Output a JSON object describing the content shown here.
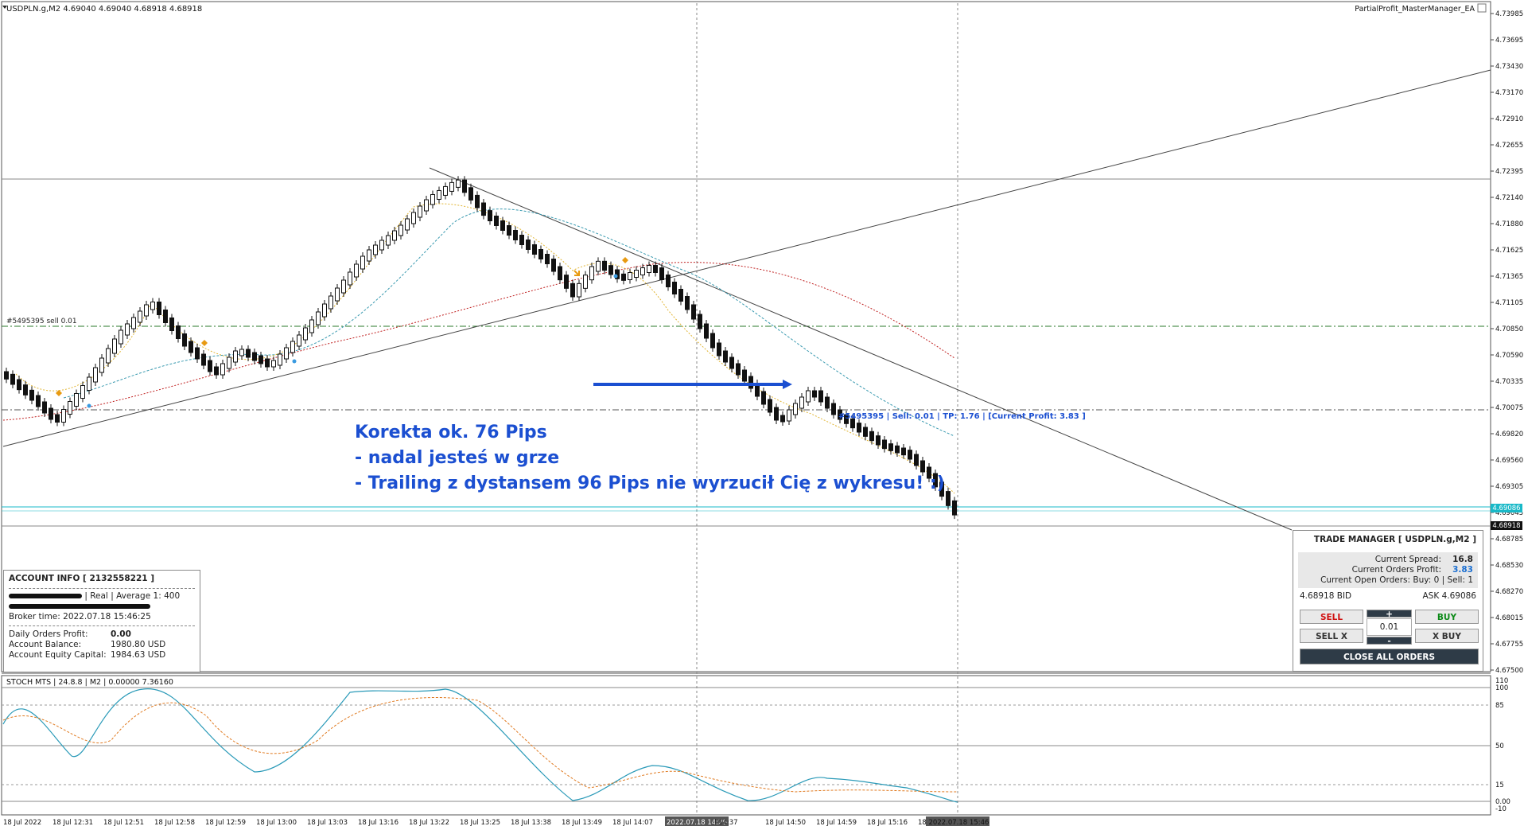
{
  "chart_header": {
    "symbol_info": "USDPLN.g,M2  4.69040 4.69040 4.68918 4.68918",
    "ea_name": "PartialProfit_MasterManager_EA"
  },
  "price_axis": [
    "4.73985",
    "4.73695",
    "4.73430",
    "4.73170",
    "4.72910",
    "4.72655",
    "4.72395",
    "4.72140",
    "4.71880",
    "4.71625",
    "4.71365",
    "4.71105",
    "4.70850",
    "4.70590",
    "4.70335",
    "4.70075",
    "4.69820",
    "4.69560",
    "4.69305",
    "4.69045",
    "4.68785",
    "4.68530",
    "4.68270",
    "4.68015",
    "4.67755",
    "4.67500"
  ],
  "price_tags": {
    "ask": "4.69086",
    "bid": "4.68918"
  },
  "time_axis": [
    "18 Jul 2022",
    "18 Jul 12:31",
    "18 Jul 12:51",
    "18 Jul 12:58",
    "18 Jul 12:59",
    "18 Jul 13:00",
    "18 Jul 13:03",
    "18 Jul 13:16",
    "18 Jul 13:22",
    "18 Jul 13:25",
    "18 Jul 13:38",
    "18 Jul 13:49",
    "18 Jul 14:07",
    "2022.07.18 14:26",
    "l 14:37",
    "18 Jul 14:50",
    "18 Jul 14:59",
    "18 Jul 15:16",
    "18 2022.07.18 15:46"
  ],
  "order_line_label": "#5495395 sell 0.01",
  "order_info_label": "#5495395 | Sell: 0.01 | TP: 1.76 | [Current Profit: 3.83 ]",
  "annotation": {
    "line1": "Korekta ok. 76 Pips",
    "line2": "- nadal jesteś w grze",
    "line3": "- Trailing z dystansem 96 Pips nie wyrzucił Cię z wykresu! :)"
  },
  "account_info": {
    "title": "ACCOUNT INFO [ 2132558221 ]",
    "account_type": "| Real | Average 1: 400",
    "broker_time": "Broker time: 2022.07.18 15:46:25",
    "daily_profit_label": "Daily Orders Profit:",
    "daily_profit_value": "0.00",
    "balance_label": "Account Balance:",
    "balance_value": "1980.80 USD",
    "equity_label": "Account Equity Capital:",
    "equity_value": "1984.63 USD"
  },
  "trade_manager": {
    "title": "TRADE MANAGER [ USDPLN.g,M2 ]",
    "spread_label": "Current Spread:",
    "spread_value": "16.8",
    "profit_label": "Current Orders Profit:",
    "profit_value": "3.83",
    "open_orders": "Current Open Orders: Buy: 0  |  Sell: 1",
    "bid": "4.68918 BID",
    "ask": "ASK 4.69086",
    "sell": "SELL",
    "buy": "BUY",
    "plus": "+",
    "minus": "-",
    "lot": "0.01",
    "sell_x": "SELL X",
    "x_buy": "X BUY",
    "close_all": "CLOSE ALL ORDERS"
  },
  "stoch": {
    "label": "STOCH MTS | 24.8.8 | M2 | 0.00000 7.36160",
    "levels": [
      "110",
      "100",
      "85",
      "50",
      "15",
      "0.00",
      "-10"
    ]
  },
  "colors": {
    "sell": "#d01010",
    "buy": "#0c8a18",
    "accent": "#1b4fd1",
    "dark_button": "#2e3b47"
  }
}
